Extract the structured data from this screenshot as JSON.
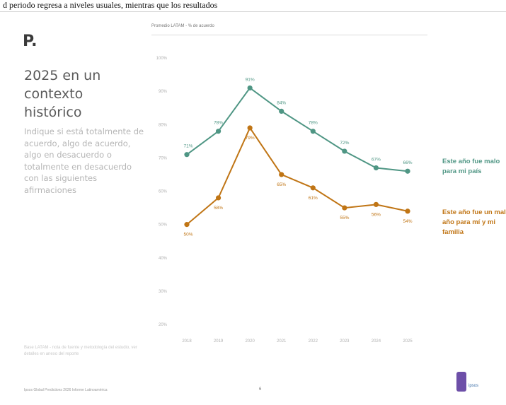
{
  "page": {
    "top_caption": "d periodo regresa a niveles usuales, mientras que los resultados",
    "brand": "P.",
    "section_title": "2025 en un contexto histórico",
    "question": "Indique si está totalmente de acuerdo, algo de acuerdo, algo en desacuerdo o totalmente en desacuerdo con las siguientes afirmaciones",
    "source_note": "Base LATAM - nota de fuente y metodología del estudio, ver detalles en anexo del reporte",
    "footer_left": "Ipsos Global Predictions 2026 Informe Latinoamérica",
    "page_number": "6",
    "logo_text": "ipsos"
  },
  "chart_data": {
    "type": "line",
    "title": "Promedio LATAM - % de acuerdo",
    "categories": [
      "2018",
      "2019",
      "2020",
      "2021",
      "2022",
      "2023",
      "2024",
      "2025"
    ],
    "ylim": [
      0,
      100
    ],
    "yticks": [
      "100%",
      "90%",
      "80%",
      "70%",
      "60%",
      "50%",
      "40%",
      "30%",
      "20%"
    ],
    "grid": false,
    "legend": "right",
    "series": [
      {
        "name": "Este año fue malo para mi país",
        "color": "#4f9684",
        "values": [
          71,
          78,
          91,
          84,
          78,
          72,
          67,
          66
        ],
        "labels": [
          "71%",
          "78%",
          "91%",
          "84%",
          "78%",
          "72%",
          "67%",
          "66%"
        ]
      },
      {
        "name": "Este año fue un mal año para mí y mi familia",
        "color": "#c07515",
        "values": [
          50,
          58,
          79,
          65,
          61,
          55,
          56,
          54
        ],
        "labels": [
          "50%",
          "58%",
          "79%",
          "65%",
          "61%",
          "55%",
          "56%",
          "54%"
        ]
      }
    ]
  }
}
